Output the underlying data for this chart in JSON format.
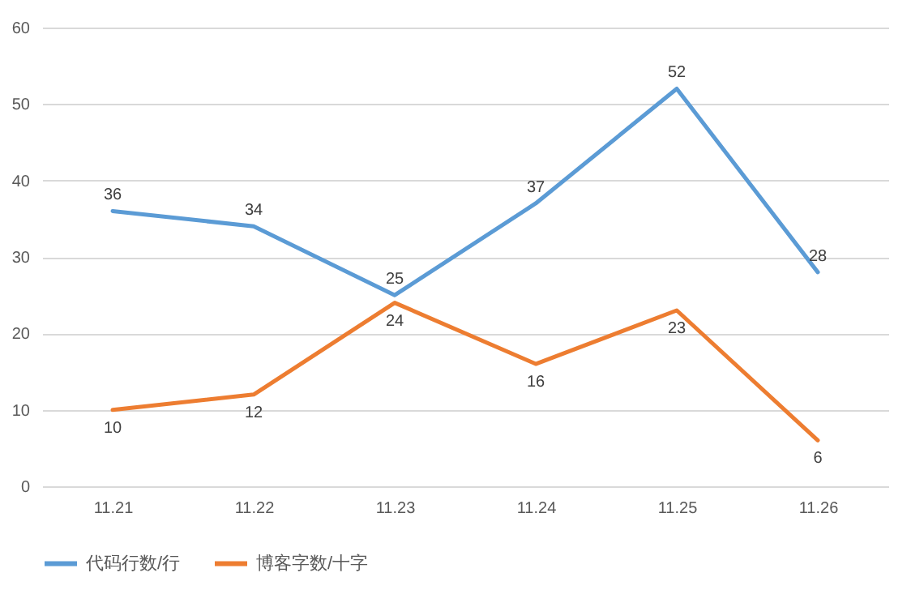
{
  "chart_data": {
    "type": "line",
    "categories": [
      "11.21",
      "11.22",
      "11.23",
      "11.24",
      "11.25",
      "11.26"
    ],
    "series": [
      {
        "name": "代码行数/行",
        "color": "#5b9bd5",
        "values": [
          36,
          34,
          25,
          37,
          52,
          28
        ]
      },
      {
        "name": "博客字数/十字",
        "color": "#ed7d31",
        "values": [
          10,
          12,
          24,
          16,
          23,
          6
        ]
      }
    ],
    "ylim": [
      0,
      60
    ],
    "yticks": [
      0,
      10,
      20,
      30,
      40,
      50,
      60
    ],
    "grid": "y",
    "legend": "bottom",
    "data_labels": true,
    "marker": "none",
    "line_style": "solid"
  }
}
